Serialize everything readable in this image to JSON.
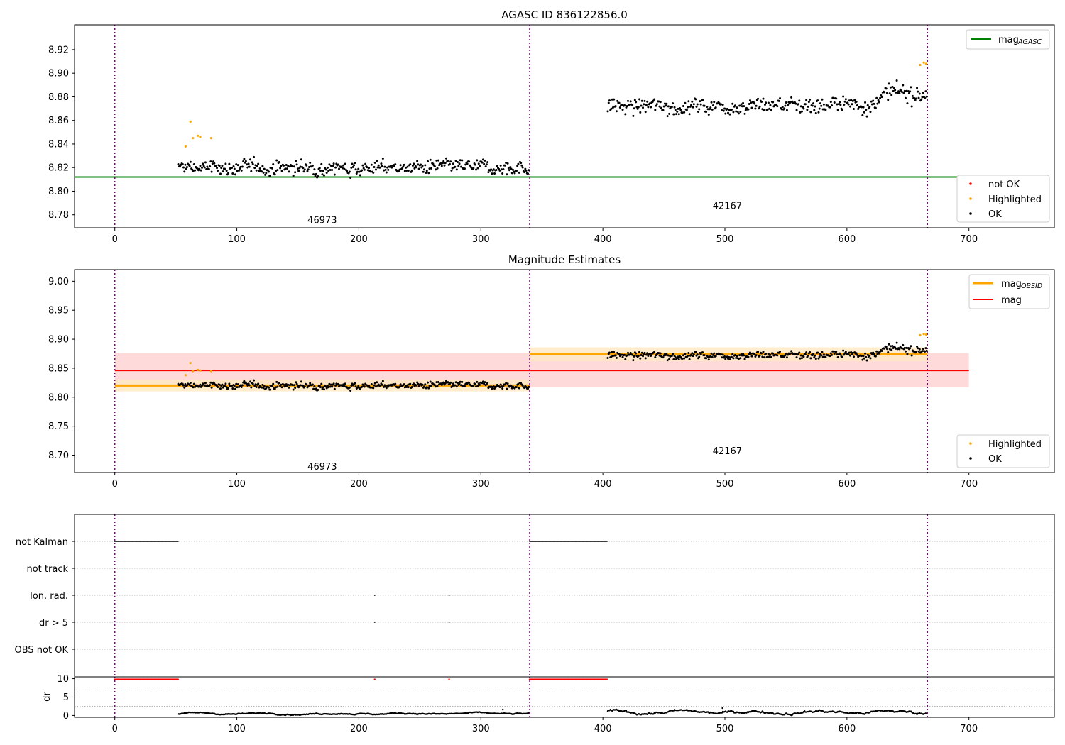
{
  "chart_data": [
    {
      "type": "scatter",
      "title": "AGASC ID 836122856.0",
      "xlim": [
        -33,
        770
      ],
      "ylim": [
        8.769,
        8.941
      ],
      "xticks": [
        "0",
        "100",
        "200",
        "300",
        "400",
        "500",
        "600",
        "700"
      ],
      "xtick_values": [
        0,
        100,
        200,
        300,
        400,
        500,
        600,
        700
      ],
      "yticks": [
        "8.78",
        "8.80",
        "8.82",
        "8.84",
        "8.86",
        "8.88",
        "8.90",
        "8.92"
      ],
      "ytick_values": [
        8.78,
        8.8,
        8.82,
        8.84,
        8.86,
        8.88,
        8.9,
        8.92
      ],
      "obsid_boundaries": [
        0,
        340,
        666
      ],
      "obsid_labels": [
        {
          "text": "46973",
          "x": 170,
          "y": 8.776
        },
        {
          "text": "42167",
          "x": 502,
          "y": 8.788
        }
      ],
      "mag_agasc": 8.812,
      "mag_agasc_span": [
        -33,
        700
      ],
      "legend_lines": {
        "mag_agasc": "mag",
        "mag_agasc_sub": "AGASC"
      },
      "legend_points": {
        "not_ok": "not OK",
        "highlighted": "Highlighted",
        "ok": "OK"
      },
      "segments": [
        {
          "obsid": "46973",
          "x_range": [
            52,
            340
          ],
          "mean": 8.82,
          "noise": 0.0068,
          "drift": 0.0
        },
        {
          "obsid": "42167",
          "x_range": [
            404,
            666
          ],
          "mean": 8.873,
          "noise": 0.008,
          "drift": 0.015
        }
      ],
      "highlighted": [
        {
          "x": 58,
          "y": 8.838
        },
        {
          "x": 62,
          "y": 8.859
        },
        {
          "x": 64,
          "y": 8.845
        },
        {
          "x": 68,
          "y": 8.847
        },
        {
          "x": 70,
          "y": 8.846
        },
        {
          "x": 79,
          "y": 8.845
        },
        {
          "x": 660,
          "y": 8.907
        },
        {
          "x": 663,
          "y": 8.909
        },
        {
          "x": 665,
          "y": 8.908
        }
      ],
      "colors": {
        "ok": "#000000",
        "highlighted": "#ffa500",
        "not_ok": "#ff0000",
        "mag_agasc": "#008000",
        "boundary": "#800080"
      }
    },
    {
      "type": "scatter",
      "title": "Magnitude Estimates",
      "xlim": [
        -33,
        770
      ],
      "ylim": [
        8.67,
        9.02
      ],
      "xticks": [
        "0",
        "100",
        "200",
        "300",
        "400",
        "500",
        "600",
        "700"
      ],
      "xtick_values": [
        0,
        100,
        200,
        300,
        400,
        500,
        600,
        700
      ],
      "yticks": [
        "8.70",
        "8.75",
        "8.80",
        "8.85",
        "8.90",
        "8.95",
        "9.00"
      ],
      "ytick_values": [
        8.7,
        8.75,
        8.8,
        8.85,
        8.9,
        8.95,
        9.0
      ],
      "obsid_boundaries": [
        0,
        340,
        666
      ],
      "obsid_labels": [
        {
          "text": "46973",
          "x": 170,
          "y": 8.681
        },
        {
          "text": "42167",
          "x": 502,
          "y": 8.708
        }
      ],
      "mag": {
        "value": 8.846,
        "band": [
          8.817,
          8.876
        ],
        "x_range": [
          0,
          700
        ]
      },
      "mag_obsid": [
        {
          "value": 8.82,
          "band": [
            8.81,
            8.83
          ],
          "x_range": [
            0,
            340
          ]
        },
        {
          "value": 8.874,
          "band": [
            8.862,
            8.886
          ],
          "x_range": [
            340,
            666
          ]
        }
      ],
      "legend_lines": {
        "mag_obsid": "mag",
        "mag_obsid_sub": "OBSID",
        "mag": "mag"
      },
      "legend_points": {
        "highlighted": "Highlighted",
        "ok": "OK"
      },
      "colors": {
        "mag": "#ff0000",
        "mag_band": "#ffdada",
        "mag_obsid": "#ffa500",
        "mag_obsid_band": "#ffe9c2"
      }
    },
    {
      "type": "scatter",
      "title": "",
      "flags": [
        "not Kalman",
        "not track",
        "Ion. rad.",
        "dr > 5",
        "OBS not OK"
      ],
      "flag_ranges": {
        "not Kalman": [
          [
            0,
            52
          ],
          [
            340,
            404
          ]
        ],
        "not track": [],
        "Ion. rad.": [
          [
            213,
            213
          ],
          [
            274,
            274
          ]
        ],
        "dr > 5": [
          [
            213,
            213
          ],
          [
            274,
            274
          ]
        ],
        "OBS not OK": []
      },
      "obsid_boundaries": [
        0,
        340,
        666
      ],
      "colors": {
        "flag": "#000000",
        "grid": "#aaaaaa"
      }
    },
    {
      "type": "scatter",
      "title": "",
      "ylabel": "dr",
      "xlim": [
        -33,
        770
      ],
      "ylim": [
        -0.5,
        10.5
      ],
      "xticks": [
        "0",
        "100",
        "200",
        "300",
        "400",
        "500",
        "600",
        "700"
      ],
      "xtick_values": [
        0,
        100,
        200,
        300,
        400,
        500,
        600,
        700
      ],
      "yticks": [
        "0",
        "5",
        "10"
      ],
      "ytick_values": [
        0,
        5,
        10
      ],
      "capped_value": 10,
      "capped_ranges": [
        [
          0,
          52
        ],
        [
          213,
          213
        ],
        [
          274,
          274
        ],
        [
          340,
          404
        ]
      ],
      "dr_segments": [
        {
          "x_range": [
            52,
            340
          ],
          "base": 0.5,
          "amp": 0.35
        },
        {
          "x_range": [
            404,
            666
          ],
          "base": 0.9,
          "amp": 0.7
        }
      ],
      "dr_outliers": [
        {
          "x": 318,
          "y": 1.6
        },
        {
          "x": 498,
          "y": 2.0
        }
      ],
      "colors": {
        "ok": "#000000",
        "capped": "#ff0000"
      }
    }
  ]
}
